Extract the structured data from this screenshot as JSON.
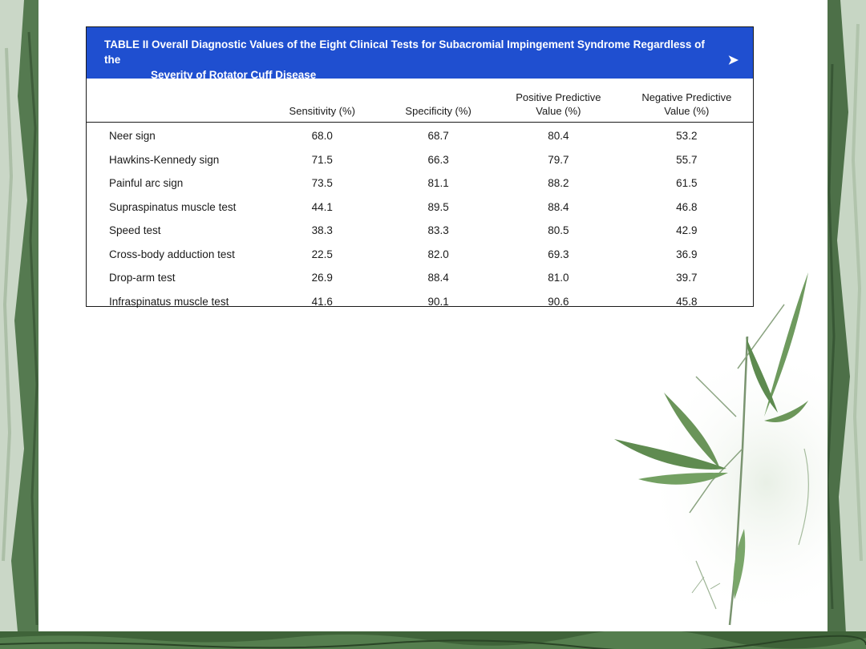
{
  "table": {
    "caption_line1": "TABLE II Overall Diagnostic Values of the Eight Clinical Tests for Subacromial Impingement Syndrome Regardless of the",
    "caption_line2": "Severity of Rotator Cuff Disease",
    "caption_arrow": "➤",
    "headers": {
      "test": "",
      "sensitivity": "Sensitivity (%)",
      "specificity": "Specificity (%)",
      "ppv_line1": "Positive Predictive",
      "ppv_line2": "Value (%)",
      "npv_line1": "Negative Predictive",
      "npv_line2": "Value (%)"
    },
    "rows": [
      {
        "test": "Neer sign",
        "sensitivity": "68.0",
        "specificity": "68.7",
        "ppv": "80.4",
        "npv": "53.2"
      },
      {
        "test": "Hawkins-Kennedy sign",
        "sensitivity": "71.5",
        "specificity": "66.3",
        "ppv": "79.7",
        "npv": "55.7"
      },
      {
        "test": "Painful arc sign",
        "sensitivity": "73.5",
        "specificity": "81.1",
        "ppv": "88.2",
        "npv": "61.5"
      },
      {
        "test": "Supraspinatus muscle test",
        "sensitivity": "44.1",
        "specificity": "89.5",
        "ppv": "88.4",
        "npv": "46.8"
      },
      {
        "test": "Speed test",
        "sensitivity": "38.3",
        "specificity": "83.3",
        "ppv": "80.5",
        "npv": "42.9"
      },
      {
        "test": "Cross-body adduction test",
        "sensitivity": "22.5",
        "specificity": "82.0",
        "ppv": "69.3",
        "npv": "36.9"
      },
      {
        "test": "Drop-arm test",
        "sensitivity": "26.9",
        "specificity": "88.4",
        "ppv": "81.0",
        "npv": "39.7"
      },
      {
        "test": "Infraspinatus muscle test",
        "sensitivity": "41.6",
        "specificity": "90.1",
        "ppv": "90.6",
        "npv": "45.8"
      }
    ]
  },
  "theme": {
    "caption_bar_color": "#1f4fd0",
    "border_color": "#1a1a1a",
    "frame_color": "#4a6b45",
    "leaf_color": "#5f8a52"
  },
  "decorations": {
    "frame": "bamboo-forest-border",
    "ornament": "bamboo-branch-illustration"
  }
}
